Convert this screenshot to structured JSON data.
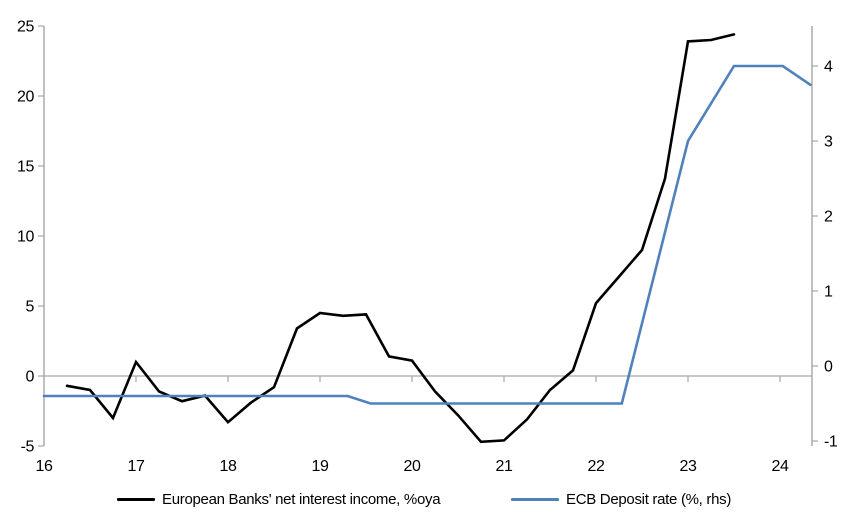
{
  "chart_data": {
    "type": "line",
    "title": "",
    "x_axis": {
      "tick_labels": [
        16,
        17,
        18,
        19,
        20,
        21,
        22,
        23,
        24
      ],
      "range": [
        16,
        24.35
      ],
      "grid": false,
      "ticks_on_zero_line": true
    },
    "left_axis": {
      "tick_labels": [
        25,
        20,
        15,
        10,
        5,
        0,
        -5
      ],
      "range": [
        -5.5,
        25
      ],
      "zero_gridline": true
    },
    "right_axis": {
      "tick_labels": [
        4,
        3,
        2,
        1,
        0,
        -1
      ],
      "range": [
        -1.1,
        4.55
      ]
    },
    "legend_position": "bottom",
    "series": [
      {
        "name": "European Banks' net interest income, %oya",
        "axis": "left",
        "color": "#000000",
        "points": [
          [
            16.25,
            -0.7
          ],
          [
            16.5,
            -1.0
          ],
          [
            16.75,
            -3.0
          ],
          [
            17.0,
            1.0
          ],
          [
            17.25,
            -1.1
          ],
          [
            17.5,
            -1.8
          ],
          [
            17.75,
            -1.4
          ],
          [
            18.0,
            -3.3
          ],
          [
            18.25,
            -1.9
          ],
          [
            18.5,
            -0.8
          ],
          [
            18.75,
            3.4
          ],
          [
            19.0,
            4.5
          ],
          [
            19.25,
            4.3
          ],
          [
            19.5,
            4.4
          ],
          [
            19.75,
            1.4
          ],
          [
            20.0,
            1.1
          ],
          [
            20.25,
            -1.1
          ],
          [
            20.5,
            -2.8
          ],
          [
            20.75,
            -4.7
          ],
          [
            21.0,
            -4.6
          ],
          [
            21.25,
            -3.1
          ],
          [
            21.5,
            -1.0
          ],
          [
            21.75,
            0.4
          ],
          [
            22.0,
            5.2
          ],
          [
            22.25,
            7.1
          ],
          [
            22.5,
            9.0
          ],
          [
            22.75,
            14.1
          ],
          [
            23.0,
            23.9
          ],
          [
            23.25,
            24.0
          ],
          [
            23.5,
            24.4
          ]
        ]
      },
      {
        "name": "ECB Deposit rate (%, rhs)",
        "axis": "right",
        "color": "#4f81bd",
        "points": [
          [
            16.0,
            -0.4
          ],
          [
            19.3,
            -0.4
          ],
          [
            19.55,
            -0.5
          ],
          [
            22.28,
            -0.5
          ],
          [
            23.0,
            3.0
          ],
          [
            23.5,
            4.0
          ],
          [
            24.03,
            4.0
          ],
          [
            24.33,
            3.75
          ]
        ]
      }
    ]
  },
  "colors": {
    "background": "#ffffff",
    "axis_line": "#a6a6a6",
    "zero_gridline": "#a6a6a6",
    "tick_text": "#000000",
    "series_nii": "#000000",
    "series_ecb": "#4f81bd"
  }
}
